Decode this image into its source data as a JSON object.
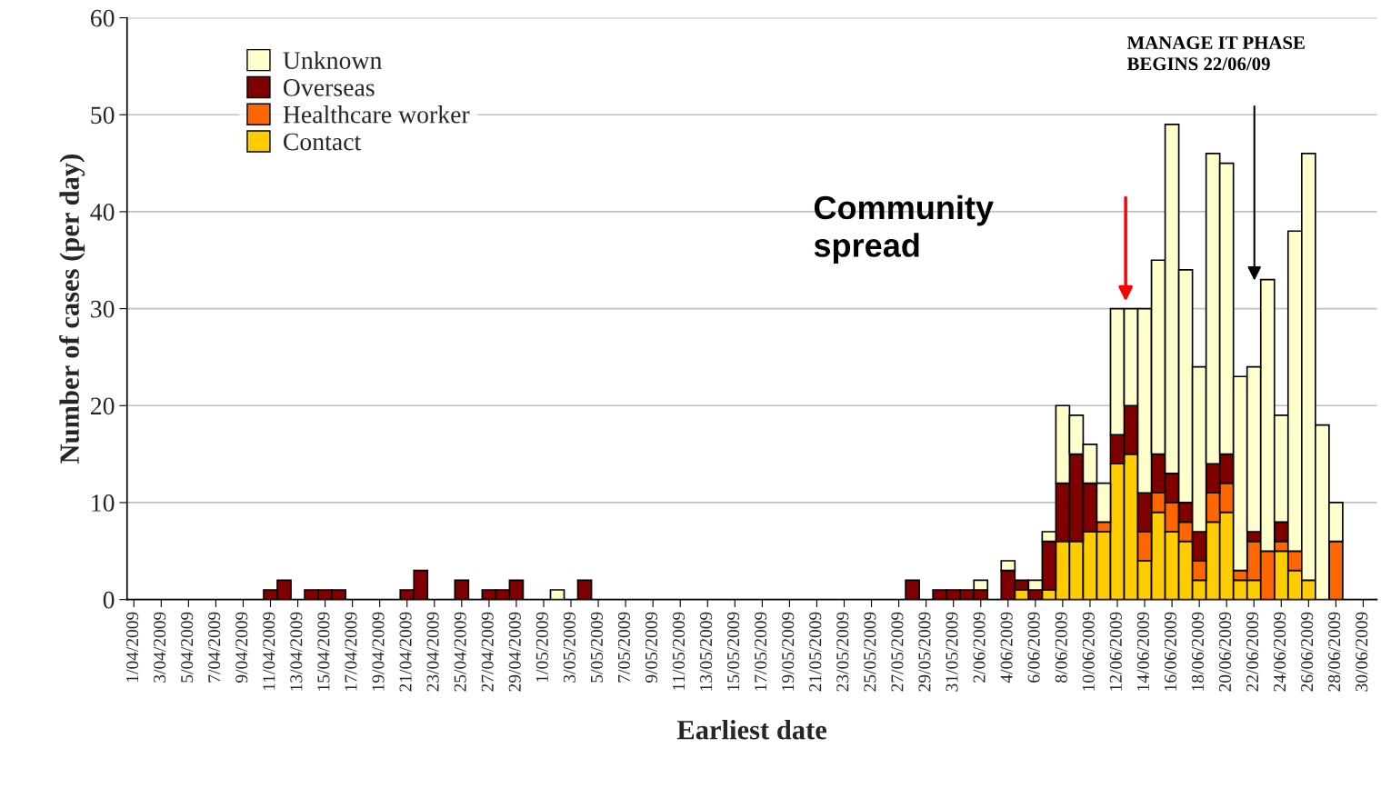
{
  "chart_data": {
    "type": "bar",
    "stacked": true,
    "xlabel": "Earliest date",
    "ylabel": "Number of cases (per day)",
    "x": [
      "2009-04-01",
      "2009-04-02",
      "2009-04-03",
      "2009-04-04",
      "2009-04-05",
      "2009-04-06",
      "2009-04-07",
      "2009-04-08",
      "2009-04-09",
      "2009-04-10",
      "2009-04-11",
      "2009-04-12",
      "2009-04-13",
      "2009-04-14",
      "2009-04-15",
      "2009-04-16",
      "2009-04-17",
      "2009-04-18",
      "2009-04-19",
      "2009-04-20",
      "2009-04-21",
      "2009-04-22",
      "2009-04-23",
      "2009-04-24",
      "2009-04-25",
      "2009-04-26",
      "2009-04-27",
      "2009-04-28",
      "2009-04-29",
      "2009-04-30",
      "2009-05-01",
      "2009-05-02",
      "2009-05-03",
      "2009-05-04",
      "2009-05-05",
      "2009-05-06",
      "2009-05-07",
      "2009-05-08",
      "2009-05-09",
      "2009-05-10",
      "2009-05-11",
      "2009-05-12",
      "2009-05-13",
      "2009-05-14",
      "2009-05-15",
      "2009-05-16",
      "2009-05-17",
      "2009-05-18",
      "2009-05-19",
      "2009-05-20",
      "2009-05-21",
      "2009-05-22",
      "2009-05-23",
      "2009-05-24",
      "2009-05-25",
      "2009-05-26",
      "2009-05-27",
      "2009-05-28",
      "2009-05-29",
      "2009-05-30",
      "2009-05-31",
      "2009-06-01",
      "2009-06-02",
      "2009-06-03",
      "2009-06-04",
      "2009-06-05",
      "2009-06-06",
      "2009-06-07",
      "2009-06-08",
      "2009-06-09",
      "2009-06-10",
      "2009-06-11",
      "2009-06-12",
      "2009-06-13",
      "2009-06-14",
      "2009-06-15",
      "2009-06-16",
      "2009-06-17",
      "2009-06-18",
      "2009-06-19",
      "2009-06-20",
      "2009-06-21",
      "2009-06-22",
      "2009-06-23",
      "2009-06-24",
      "2009-06-25",
      "2009-06-26",
      "2009-06-27",
      "2009-06-28",
      "2009-06-29",
      "2009-06-30"
    ],
    "series": [
      {
        "name": "Contact",
        "color": "#ffcc00",
        "values": [
          0,
          0,
          0,
          0,
          0,
          0,
          0,
          0,
          0,
          0,
          0,
          0,
          0,
          0,
          0,
          0,
          0,
          0,
          0,
          0,
          0,
          0,
          0,
          0,
          0,
          0,
          0,
          0,
          0,
          0,
          0,
          0,
          0,
          0,
          0,
          0,
          0,
          0,
          0,
          0,
          0,
          0,
          0,
          0,
          0,
          0,
          0,
          0,
          0,
          0,
          0,
          0,
          0,
          0,
          0,
          0,
          0,
          0,
          0,
          0,
          0,
          0,
          0,
          0,
          0,
          1,
          0,
          1,
          6,
          6,
          7,
          7,
          14,
          15,
          4,
          9,
          7,
          6,
          2,
          8,
          9,
          2,
          2,
          0,
          5,
          3,
          2,
          0,
          0,
          0,
          0
        ]
      },
      {
        "name": "Healthcare worker",
        "color": "#ff6600",
        "values": [
          0,
          0,
          0,
          0,
          0,
          0,
          0,
          0,
          0,
          0,
          0,
          0,
          0,
          0,
          0,
          0,
          0,
          0,
          0,
          0,
          0,
          0,
          0,
          0,
          0,
          0,
          0,
          0,
          0,
          0,
          0,
          0,
          0,
          0,
          0,
          0,
          0,
          0,
          0,
          0,
          0,
          0,
          0,
          0,
          0,
          0,
          0,
          0,
          0,
          0,
          0,
          0,
          0,
          0,
          0,
          0,
          0,
          0,
          0,
          0,
          0,
          0,
          0,
          0,
          0,
          0,
          0,
          0,
          0,
          0,
          0,
          1,
          0,
          0,
          3,
          2,
          3,
          2,
          2,
          3,
          3,
          1,
          4,
          5,
          1,
          2,
          0,
          0,
          6,
          0,
          0
        ]
      },
      {
        "name": "Overseas",
        "color": "#800000",
        "values": [
          0,
          0,
          0,
          0,
          0,
          0,
          0,
          0,
          0,
          0,
          1,
          2,
          0,
          1,
          1,
          1,
          0,
          0,
          0,
          0,
          1,
          3,
          0,
          0,
          2,
          0,
          1,
          1,
          2,
          0,
          0,
          0,
          0,
          2,
          0,
          0,
          0,
          0,
          0,
          0,
          0,
          0,
          0,
          0,
          0,
          0,
          0,
          0,
          0,
          0,
          0,
          0,
          0,
          0,
          0,
          0,
          0,
          2,
          0,
          1,
          1,
          1,
          1,
          0,
          3,
          1,
          1,
          5,
          6,
          9,
          5,
          0,
          3,
          5,
          4,
          4,
          3,
          2,
          3,
          3,
          3,
          0,
          1,
          0,
          2,
          0,
          0,
          0,
          0,
          0,
          0
        ]
      },
      {
        "name": "Unknown",
        "color": "#ffffcc",
        "values": [
          0,
          0,
          0,
          0,
          0,
          0,
          0,
          0,
          0,
          0,
          0,
          0,
          0,
          0,
          0,
          0,
          0,
          0,
          0,
          0,
          0,
          0,
          0,
          0,
          0,
          0,
          0,
          0,
          0,
          0,
          0,
          1,
          0,
          0,
          0,
          0,
          0,
          0,
          0,
          0,
          0,
          0,
          0,
          0,
          0,
          0,
          0,
          0,
          0,
          0,
          0,
          0,
          0,
          0,
          0,
          0,
          0,
          0,
          0,
          0,
          0,
          0,
          1,
          0,
          1,
          0,
          1,
          1,
          8,
          4,
          4,
          4,
          13,
          10,
          19,
          20,
          36,
          24,
          17,
          32,
          30,
          20,
          17,
          28,
          11,
          33,
          44,
          18,
          4,
          0,
          0
        ]
      }
    ],
    "ylim": [
      0,
      60
    ],
    "yticks": [
      0,
      10,
      20,
      30,
      40,
      50,
      60
    ],
    "xlim": [
      "2009-03-31T12:00",
      "2009-07-01"
    ],
    "xticks": [
      {
        "value": "2009-04-01",
        "label": "1/04/2009"
      },
      {
        "value": "2009-04-03",
        "label": "3/04/2009"
      },
      {
        "value": "2009-04-05",
        "label": "5/04/2009"
      },
      {
        "value": "2009-04-07",
        "label": "7/04/2009"
      },
      {
        "value": "2009-04-09",
        "label": "9/04/2009"
      },
      {
        "value": "2009-04-11",
        "label": "11/04/2009"
      },
      {
        "value": "2009-04-13",
        "label": "13/04/2009"
      },
      {
        "value": "2009-04-15",
        "label": "15/04/2009"
      },
      {
        "value": "2009-04-17",
        "label": "17/04/2009"
      },
      {
        "value": "2009-04-19",
        "label": "19/04/2009"
      },
      {
        "value": "2009-04-21",
        "label": "21/04/2009"
      },
      {
        "value": "2009-04-23",
        "label": "23/04/2009"
      },
      {
        "value": "2009-04-25",
        "label": "25/04/2009"
      },
      {
        "value": "2009-04-27",
        "label": "27/04/2009"
      },
      {
        "value": "2009-04-29",
        "label": "29/04/2009"
      },
      {
        "value": "2009-05-01",
        "label": "1/05/2009"
      },
      {
        "value": "2009-05-03",
        "label": "3/05/2009"
      },
      {
        "value": "2009-05-05",
        "label": "5/05/2009"
      },
      {
        "value": "2009-05-07",
        "label": "7/05/2009"
      },
      {
        "value": "2009-05-09",
        "label": "9/05/2009"
      },
      {
        "value": "2009-05-11",
        "label": "11/05/2009"
      },
      {
        "value": "2009-05-13",
        "label": "13/05/2009"
      },
      {
        "value": "2009-05-15",
        "label": "15/05/2009"
      },
      {
        "value": "2009-05-17",
        "label": "17/05/2009"
      },
      {
        "value": "2009-05-19",
        "label": "19/05/2009"
      },
      {
        "value": "2009-05-21",
        "label": "21/05/2009"
      },
      {
        "value": "2009-05-23",
        "label": "23/05/2009"
      },
      {
        "value": "2009-05-25",
        "label": "25/05/2009"
      },
      {
        "value": "2009-05-27",
        "label": "27/05/2009"
      },
      {
        "value": "2009-05-29",
        "label": "29/05/2009"
      },
      {
        "value": "2009-05-31",
        "label": "31/05/2009"
      },
      {
        "value": "2009-06-02",
        "label": "2/06/2009"
      },
      {
        "value": "2009-06-04",
        "label": "4/06/2009"
      },
      {
        "value": "2009-06-06",
        "label": "6/06/2009"
      },
      {
        "value": "2009-06-08",
        "label": "8/06/2009"
      },
      {
        "value": "2009-06-10",
        "label": "10/06/2009"
      },
      {
        "value": "2009-06-12",
        "label": "12/06/2009"
      },
      {
        "value": "2009-06-14",
        "label": "14/06/2009"
      },
      {
        "value": "2009-06-16",
        "label": "16/06/2009"
      },
      {
        "value": "2009-06-18",
        "label": "18/06/2009"
      },
      {
        "value": "2009-06-20",
        "label": "20/06/2009"
      },
      {
        "value": "2009-06-22",
        "label": "22/06/2009"
      },
      {
        "value": "2009-06-24",
        "label": "24/06/2009"
      },
      {
        "value": "2009-06-26",
        "label": "26/06/2009"
      },
      {
        "value": "2009-06-28",
        "label": "28/06/2009"
      },
      {
        "value": "2009-06-30",
        "label": "30/06/2009"
      }
    ],
    "grid": "y",
    "legend": "top left",
    "annotations": [
      "Community\nspread",
      "MANAGE IT PHASE\nBEGINS 22/06/09"
    ]
  }
}
